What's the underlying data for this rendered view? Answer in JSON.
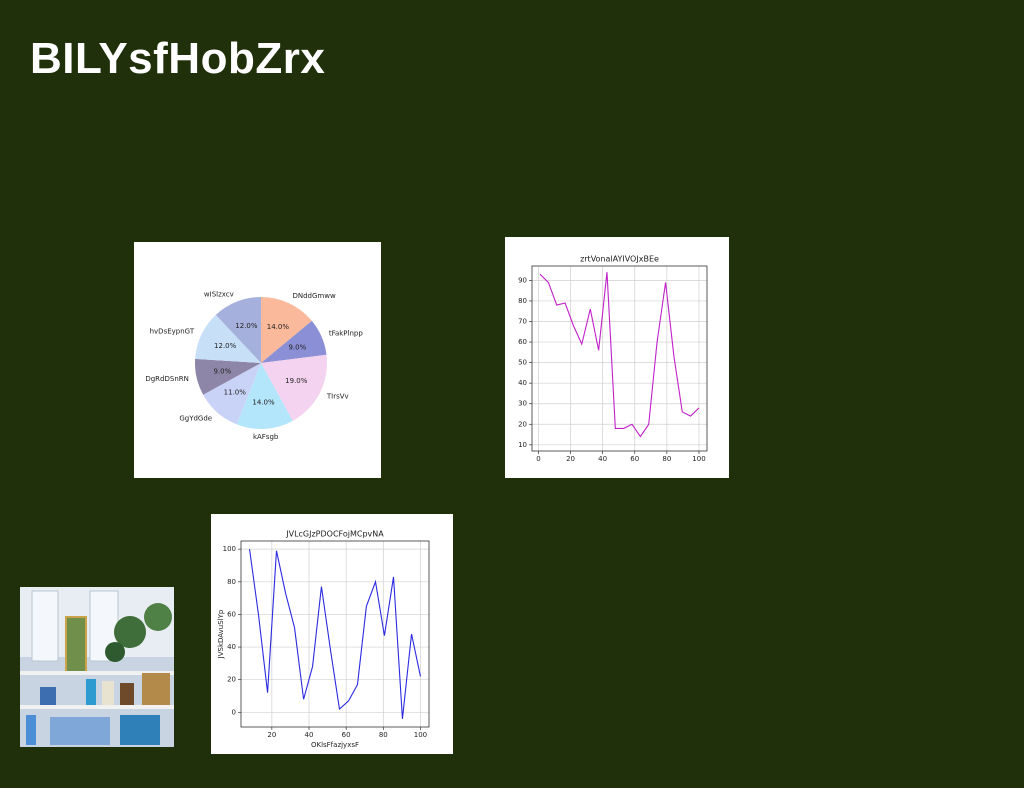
{
  "title": "BILYsfHobZrx",
  "chart_data": [
    {
      "type": "pie",
      "categories": [
        "DNddGmww",
        "tFakPlnpp",
        "TIrsVv",
        "kAFsgb",
        "GgYdGde",
        "DgRdDSnRN",
        "hvDsEypnGT",
        "wISlzxcv"
      ],
      "values": [
        14,
        9,
        19,
        14,
        11,
        9,
        12,
        12
      ],
      "value_labels": [
        "14.0%",
        "9.0%",
        "19.0%",
        "14.0%",
        "11.0%",
        "9.0%",
        "12.0%",
        "12.0%"
      ],
      "colors": [
        "#f9b99a",
        "#8b8fd6",
        "#f3d3ef",
        "#b3e5fb",
        "#c9d3f7",
        "#8e86a8",
        "#c7dff7",
        "#a6b0dc"
      ]
    },
    {
      "type": "line",
      "title": "zrtVonalAYIVOJxBEe",
      "x": [
        1,
        6.2,
        11.4,
        16.6,
        21.8,
        27,
        32.3,
        37.5,
        42.7,
        47.9,
        53.1,
        58.3,
        63.5,
        68.7,
        73.9,
        79.2,
        84.4,
        89.6,
        94.8,
        100
      ],
      "values": [
        93,
        89,
        78,
        79,
        68,
        59,
        76,
        56,
        94,
        18,
        18,
        20,
        14,
        20,
        60,
        89,
        53,
        26,
        24,
        28
      ],
      "color": "#c020c8",
      "xlim": [
        -4,
        105
      ],
      "ylim": [
        7,
        97
      ],
      "xticks": [
        0,
        20,
        40,
        60,
        80,
        100
      ],
      "yticks": [
        10,
        20,
        30,
        40,
        50,
        60,
        70,
        80,
        90
      ],
      "grid": true
    },
    {
      "type": "line",
      "title": "JVLcGJzPDOCFojMCpvNA",
      "xlabel": "OKlsFfazjyxsF",
      "ylabel": "JVSkDAvuSlYp",
      "x": [
        8,
        12.8,
        17.7,
        22.5,
        27.4,
        32.2,
        37.1,
        41.9,
        46.7,
        51.6,
        56.4,
        61.3,
        66.1,
        70.9,
        75.8,
        80.6,
        85.5,
        90.3,
        95.2,
        100
      ],
      "values": [
        100,
        60,
        12,
        99,
        73,
        52,
        8,
        28,
        77,
        38,
        2,
        7,
        17,
        65,
        80,
        47,
        83,
        -4,
        48,
        22
      ],
      "color": "#2a2ae0",
      "xlim": [
        3.4,
        104.6
      ],
      "ylim": [
        -9,
        105
      ],
      "xticks": [
        20,
        40,
        60,
        80,
        100
      ],
      "yticks": [
        0,
        20,
        40,
        60,
        80,
        100
      ],
      "grid": true
    }
  ]
}
